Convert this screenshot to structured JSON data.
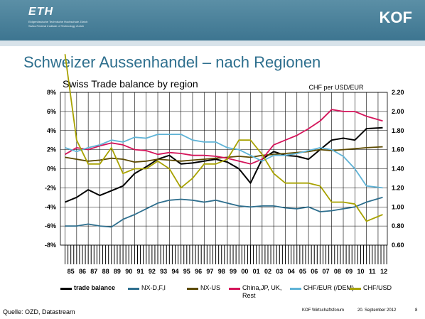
{
  "header": {
    "eth_logo": "ETH",
    "eth_subtitle_1": "Eidgenössische Technische Hochschule Zürich",
    "eth_subtitle_2": "Swiss Federal Institute of Technology Zurich",
    "kof_logo": "KOF"
  },
  "slide_title": "Schweizer Aussenhandel – nach Regionen",
  "footer": {
    "source": "Quelle: OZD, Datastream",
    "organizer": "KOF Wirtschaftsforum",
    "date": "20. September 2012",
    "page": "8"
  },
  "chart_data": {
    "type": "line",
    "title": "Swiss Trade balance by region",
    "y2label": "CHF per USD/EUR",
    "ylim": [
      -8,
      8
    ],
    "y2lim": [
      0.6,
      2.2
    ],
    "y_ticks": [
      "8%",
      "6%",
      "4%",
      "2%",
      "0%",
      "-2%",
      "-4%",
      "-6%",
      "-8%"
    ],
    "y2_ticks": [
      "2.20",
      "2.00",
      "1.80",
      "1.60",
      "1.40",
      "1.20",
      "1.00",
      "0.80",
      "0.60"
    ],
    "x_categories": [
      "85",
      "86",
      "87",
      "88",
      "89",
      "90",
      "91",
      "92",
      "93",
      "94",
      "95",
      "96",
      "97",
      "98",
      "99",
      "00",
      "01",
      "02",
      "03",
      "04",
      "05",
      "06",
      "07",
      "08",
      "09",
      "10",
      "11",
      "12"
    ],
    "series": [
      {
        "name": "trade balance",
        "axis": "left",
        "color": "#000000",
        "bold": true,
        "x": [
          1985,
          1986,
          1987,
          1988,
          1989,
          1990,
          1991,
          1992,
          1993,
          1994,
          1995,
          1996,
          1997,
          1998,
          1999,
          2000,
          2001,
          2002,
          2003,
          2004,
          2005,
          2006,
          2007,
          2008,
          2009,
          2010,
          2011,
          2012.4
        ],
        "values": [
          -3.5,
          -3.0,
          -2.2,
          -2.8,
          -2.3,
          -1.8,
          -0.5,
          0.2,
          1.0,
          1.4,
          0.5,
          0.6,
          0.8,
          1.0,
          0.7,
          0.0,
          -1.5,
          1.0,
          1.8,
          1.4,
          1.3,
          1.0,
          2.0,
          3.0,
          3.2,
          3.0,
          4.2,
          4.3
        ]
      },
      {
        "name": "NX-D,F,I",
        "axis": "left",
        "color": "#2e6f8e",
        "x": [
          1985,
          1986,
          1987,
          1988,
          1989,
          1990,
          1991,
          1992,
          1993,
          1994,
          1995,
          1996,
          1997,
          1998,
          1999,
          2000,
          2001,
          2002,
          2003,
          2004,
          2005,
          2006,
          2007,
          2008,
          2009,
          2010,
          2011,
          2012.4
        ],
        "values": [
          -6.0,
          -6.0,
          -5.8,
          -6.0,
          -6.1,
          -5.3,
          -4.8,
          -4.2,
          -3.6,
          -3.3,
          -3.2,
          -3.3,
          -3.5,
          -3.3,
          -3.6,
          -3.9,
          -4.0,
          -3.9,
          -3.9,
          -4.1,
          -4.2,
          -4.0,
          -4.5,
          -4.4,
          -4.2,
          -4.0,
          -3.5,
          -3.0
        ]
      },
      {
        "name": "NX-US",
        "axis": "left",
        "color": "#5c4a00",
        "x": [
          1985,
          1986,
          1987,
          1988,
          1989,
          1990,
          1991,
          1992,
          1993,
          1994,
          1995,
          1996,
          1997,
          1998,
          1999,
          2000,
          2001,
          2002,
          2003,
          2004,
          2005,
          2006,
          2007,
          2008,
          2009,
          2010,
          2011,
          2012.4
        ],
        "values": [
          1.2,
          1.0,
          0.8,
          0.9,
          1.1,
          1.0,
          0.7,
          0.8,
          1.0,
          0.9,
          0.8,
          0.9,
          1.0,
          1.1,
          1.2,
          1.3,
          1.2,
          1.4,
          1.5,
          1.6,
          1.7,
          1.8,
          2.0,
          1.9,
          2.0,
          2.1,
          2.2,
          2.3
        ]
      },
      {
        "name": "China,JP, UK, Rest",
        "axis": "left",
        "color": "#d4145a",
        "x": [
          1985,
          1986,
          1987,
          1988,
          1989,
          1990,
          1991,
          1992,
          1993,
          1994,
          1995,
          1996,
          1997,
          1998,
          1999,
          2000,
          2001,
          2002,
          2003,
          2004,
          2005,
          2006,
          2007,
          2008,
          2009,
          2010,
          2011,
          2012.4
        ],
        "values": [
          1.5,
          2.2,
          2.0,
          2.4,
          2.7,
          2.5,
          2.0,
          1.9,
          1.5,
          1.7,
          1.6,
          1.4,
          1.4,
          1.3,
          1.1,
          0.8,
          0.5,
          1.0,
          2.5,
          3.0,
          3.5,
          4.2,
          5.0,
          6.2,
          6.0,
          6.0,
          5.5,
          5.0
        ]
      },
      {
        "name": "CHF/EUR (/DEM)",
        "axis": "right",
        "color": "#5fb3d6",
        "x": [
          1985,
          1986,
          1987,
          1988,
          1989,
          1990,
          1991,
          1992,
          1993,
          1994,
          1995,
          1996,
          1997,
          1998,
          1999,
          2000,
          2001,
          2002,
          2003,
          2004,
          2005,
          2006,
          2007,
          2008,
          2009,
          2010,
          2011,
          2012.4
        ],
        "values": [
          1.62,
          1.58,
          1.62,
          1.65,
          1.7,
          1.68,
          1.73,
          1.72,
          1.76,
          1.76,
          1.76,
          1.7,
          1.68,
          1.68,
          1.62,
          1.6,
          1.54,
          1.48,
          1.54,
          1.54,
          1.56,
          1.59,
          1.62,
          1.6,
          1.53,
          1.4,
          1.22,
          1.2
        ]
      },
      {
        "name": "CHF/USD",
        "axis": "right",
        "color": "#a8a200",
        "x": [
          1985,
          1986,
          1987,
          1988,
          1989,
          1990,
          1991,
          1992,
          1993,
          1994,
          1995,
          1996,
          1997,
          1998,
          1999,
          2000,
          2001,
          2002,
          2003,
          2004,
          2005,
          2006,
          2007,
          2008,
          2009,
          2010,
          2011,
          2012.4
        ],
        "values": [
          2.6,
          1.7,
          1.45,
          1.45,
          1.62,
          1.35,
          1.4,
          1.4,
          1.48,
          1.4,
          1.2,
          1.3,
          1.45,
          1.45,
          1.5,
          1.7,
          1.7,
          1.55,
          1.35,
          1.25,
          1.25,
          1.25,
          1.22,
          1.05,
          1.05,
          1.03,
          0.85,
          0.92
        ]
      }
    ]
  }
}
